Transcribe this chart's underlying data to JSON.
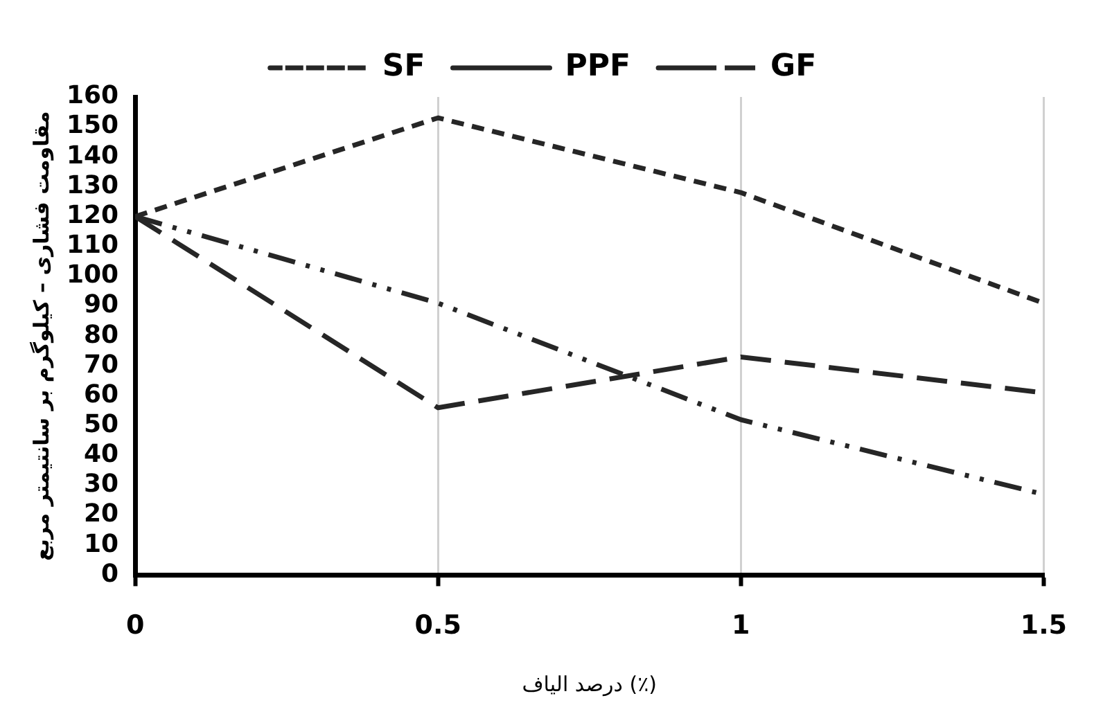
{
  "chart_data": {
    "type": "line",
    "xlabel": "درصد الیاف (٪)",
    "ylabel": "مقاومت فشاری – کیلوگرم بر سانتیمتر مربع",
    "x": [
      0,
      0.5,
      1,
      1.5
    ],
    "xlim": [
      0,
      1.5
    ],
    "xticks": [
      0,
      0.5,
      1,
      1.5
    ],
    "ylim": [
      0,
      160
    ],
    "yticks": [
      0,
      10,
      20,
      30,
      40,
      50,
      60,
      70,
      80,
      90,
      100,
      110,
      120,
      130,
      140,
      150,
      160
    ],
    "grid": "x",
    "legend": "top",
    "marker": "none",
    "series": [
      {
        "name": "SF",
        "color": "#262626",
        "line_style": "dotted",
        "values": [
          120,
          153,
          128,
          91
        ]
      },
      {
        "name": "PPF",
        "color": "#262626",
        "line_style": "dashed",
        "values": [
          120,
          56,
          73,
          61
        ]
      },
      {
        "name": "GF",
        "color": "#262626",
        "line_style": "dashdot",
        "values": [
          120,
          91,
          52,
          27
        ]
      }
    ]
  }
}
